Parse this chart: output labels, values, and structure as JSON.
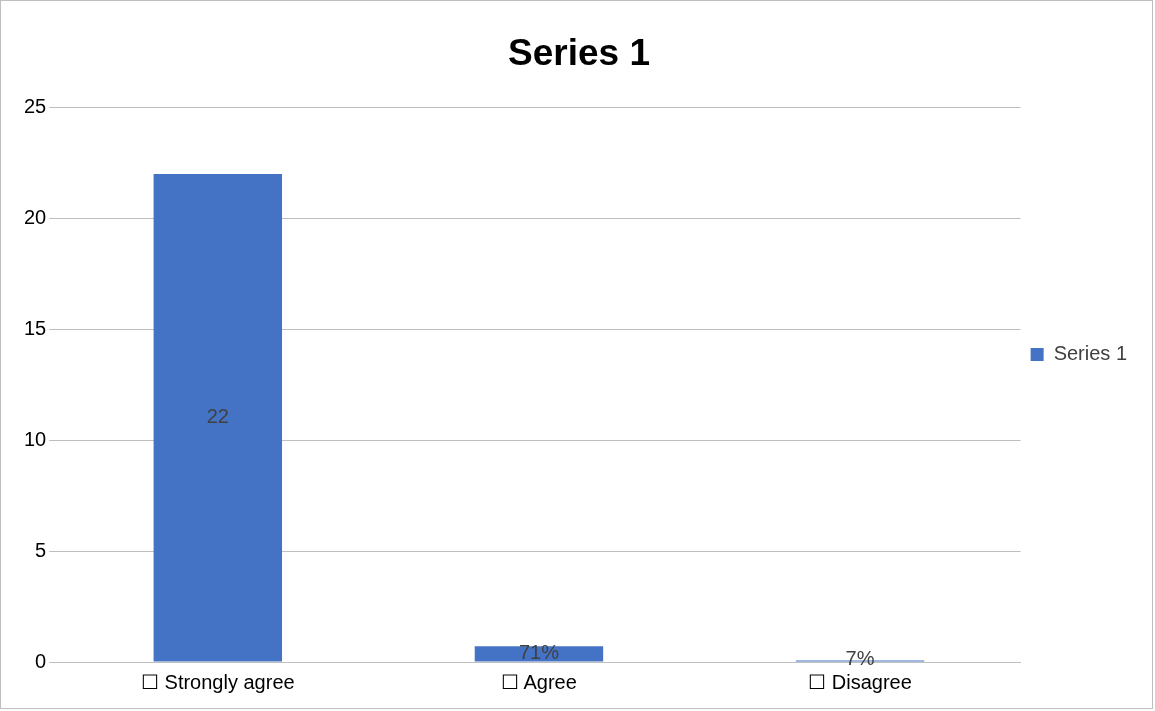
{
  "chart_data": {
    "type": "bar",
    "title": "Series 1",
    "categories": [
      "☐ Strongly agree",
      "☐ Agree",
      "☐ Disagree"
    ],
    "series": [
      {
        "name": "Series 1",
        "color": "#4472c4",
        "values": [
          22,
          0.71,
          0.07
        ],
        "value_labels": [
          "22",
          "71%",
          "7%"
        ]
      }
    ],
    "ylim": [
      0,
      25
    ],
    "yticks": [
      0,
      5,
      10,
      15,
      20,
      25
    ],
    "grid": "y",
    "legend": "right"
  }
}
